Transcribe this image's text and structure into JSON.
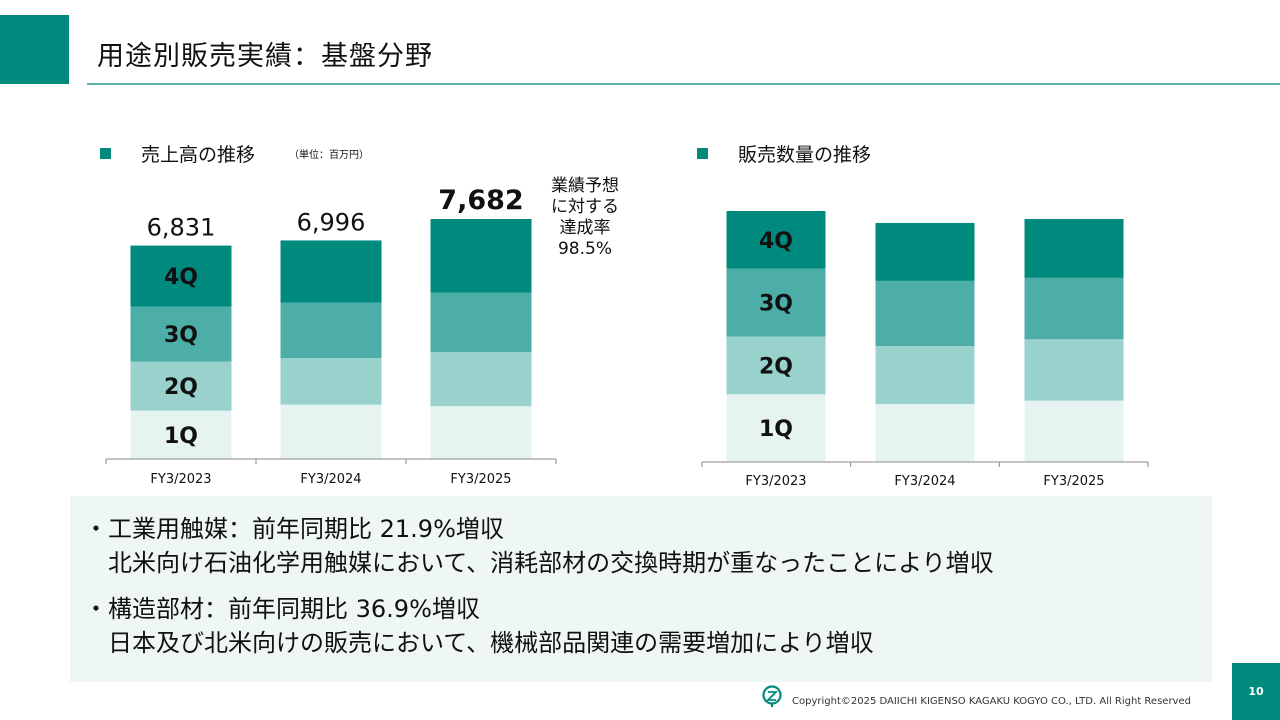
{
  "header": {
    "title": "用途別販売実績：基盤分野"
  },
  "colors": {
    "accent": "#008a7e",
    "q4": "#008a7e",
    "q3": "#4daea7",
    "q2": "#99d2cd",
    "q1": "#e5f3f1",
    "rule": "#5fb3aa",
    "note_bg": "#eef7f5"
  },
  "left_section": {
    "heading": "売上高の推移",
    "unit": "（単位：百万円）"
  },
  "right_section": {
    "heading": "販売数量の推移"
  },
  "forecast_note": {
    "lines": [
      "業績予想",
      "に対する",
      "達成率",
      "98.5%"
    ]
  },
  "chart_data": [
    {
      "type": "bar",
      "stacked": true,
      "title": "売上高の推移",
      "categories": [
        "FY3/2023",
        "FY3/2024",
        "FY3/2025"
      ],
      "series": [
        {
          "name": "1Q",
          "values": [
            1550,
            1740,
            1690
          ]
        },
        {
          "name": "2Q",
          "values": [
            1570,
            1490,
            1730
          ]
        },
        {
          "name": "3Q",
          "values": [
            1760,
            1770,
            1900
          ]
        },
        {
          "name": "4Q",
          "values": [
            1951,
            1996,
            2362
          ]
        }
      ],
      "totals": [
        "6,831",
        "6,996",
        "7,682"
      ],
      "ylim": [
        0,
        7682
      ],
      "grid": false
    },
    {
      "type": "bar",
      "stacked": true,
      "title": "販売数量の推移",
      "categories": [
        "FY3/2023",
        "FY3/2024",
        "FY3/2025"
      ],
      "series": [
        {
          "name": "1Q",
          "share": [
            0.27,
            0.24,
            0.25
          ]
        },
        {
          "name": "2Q",
          "share": [
            0.23,
            0.24,
            0.25
          ]
        },
        {
          "name": "3Q",
          "share": [
            0.27,
            0.27,
            0.25
          ]
        },
        {
          "name": "4Q",
          "share": [
            0.23,
            0.24,
            0.24
          ]
        }
      ],
      "totals_relative": [
        1.0,
        0.962,
        0.978
      ],
      "grid": false
    }
  ],
  "notes": [
    {
      "line1": "・工業用触媒：前年同期比 21.9%増収",
      "line2": "北米向け石油化学用触媒において、消耗部材の交換時期が重なったことにより増収"
    },
    {
      "line1": "・構造部材：前年同期比 36.9%増収",
      "line2": "日本及び北米向けの販売において、機械部品関連の需要増加により増収"
    }
  ],
  "footer": {
    "copyright": "Copyright©2025 DAIICHI KIGENSO KAGAKU KOGYO CO., LTD. All Right Reserved",
    "page_number": "10"
  }
}
